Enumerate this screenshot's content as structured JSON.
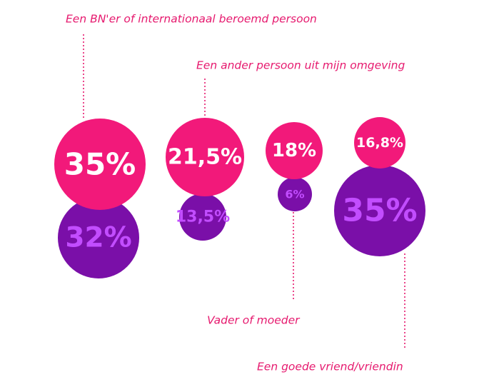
{
  "colors": {
    "pink": "#f2197a",
    "purple": "#7a0fa8",
    "label": "#e6196e",
    "pink_text": "#ffffff",
    "purple_text": "#c24dff"
  },
  "chart_data": {
    "type": "bubble",
    "title": "",
    "categories": [
      "Een BN'er of internationaal beroemd persoon",
      "Een ander persoon uit mijn omgeving",
      "Vader of moeder",
      "Een goede vriend/vriendin"
    ],
    "series": [
      {
        "color": "pink",
        "values": [
          35,
          21.5,
          18,
          16.8
        ],
        "labels": [
          "35%",
          "21,5%",
          "18%",
          "16,8%"
        ]
      },
      {
        "color": "purple",
        "values": [
          32,
          13.5,
          6,
          35
        ],
        "labels": [
          "32%",
          "13,5%",
          "6%",
          "35%"
        ]
      }
    ]
  }
}
